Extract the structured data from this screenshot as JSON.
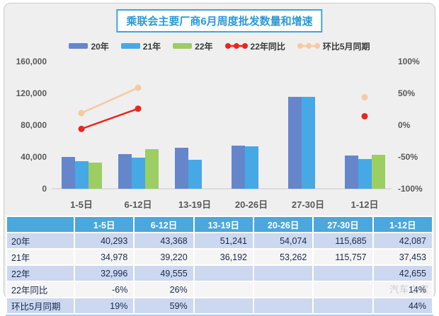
{
  "title": "乘联会主要厂商6月周度批发数量和增速",
  "watermark": "汽车之家",
  "colors": {
    "frame_bg": "#efefef",
    "title_blue": "#2b9ad7",
    "bar_2020": "#6586cb",
    "bar_2021": "#47a8e6",
    "bar_2022": "#9cce63",
    "line_yoy": "#e8271d",
    "line_mom": "#f5caa1",
    "table_header_bg": "#4ba7dc",
    "table_row_blue": "#cbd8ef",
    "table_row_white": "#f5f5f5",
    "axis_text": "#595959"
  },
  "legend": [
    {
      "label": "20年",
      "type": "bar",
      "color": "#6586cb"
    },
    {
      "label": "21年",
      "type": "bar",
      "color": "#47a8e6"
    },
    {
      "label": "22年",
      "type": "bar",
      "color": "#9cce63"
    },
    {
      "label": "22年同比",
      "type": "line",
      "color": "#e8271d"
    },
    {
      "label": "环比5月同期",
      "type": "line",
      "color": "#f5caa1"
    }
  ],
  "chart_data": {
    "type": "bar+line combo",
    "title": "乘联会主要厂商6月周度批发数量和增速",
    "categories": [
      "1-5日",
      "6-12日",
      "13-19日",
      "20-26日",
      "27-30日",
      "1-12日"
    ],
    "series": [
      {
        "name": "20年",
        "type": "bar",
        "axis": "left",
        "color": "#6586cb",
        "values": [
          40293,
          43368,
          51241,
          54074,
          115685,
          42087
        ]
      },
      {
        "name": "21年",
        "type": "bar",
        "axis": "left",
        "color": "#47a8e6",
        "values": [
          34978,
          39220,
          36192,
          53262,
          115757,
          37453
        ]
      },
      {
        "name": "22年",
        "type": "bar",
        "axis": "left",
        "color": "#9cce63",
        "values": [
          32996,
          49555,
          null,
          null,
          null,
          42655
        ]
      },
      {
        "name": "22年同比",
        "type": "line",
        "axis": "right",
        "color": "#e8271d",
        "values": [
          -6,
          26,
          null,
          null,
          null,
          14
        ]
      },
      {
        "name": "环比5月同期",
        "type": "line",
        "axis": "right",
        "color": "#f5caa1",
        "values": [
          19,
          59,
          null,
          null,
          null,
          44
        ]
      }
    ],
    "left_axis": {
      "min": 0,
      "max": 160000,
      "ticks": [
        "0",
        "40,000",
        "80,000",
        "120,000",
        "160,000"
      ]
    },
    "right_axis": {
      "min": -100,
      "max": 100,
      "ticks": [
        "-100%",
        "-50%",
        "0%",
        "50%",
        "100%"
      ]
    },
    "grid": false,
    "legend_position": "top"
  },
  "table": {
    "header": [
      "",
      "1-5日",
      "6-12日",
      "13-19日",
      "20-26日",
      "27-30日",
      "1-12日"
    ],
    "rows": [
      {
        "label": "20年",
        "values": [
          "40,293",
          "43,368",
          "51,241",
          "54,074",
          "115,685",
          "42,087"
        ]
      },
      {
        "label": "21年",
        "values": [
          "34,978",
          "39,220",
          "36,192",
          "53,262",
          "115,757",
          "37,453"
        ]
      },
      {
        "label": "22年",
        "values": [
          "32,996",
          "49,555",
          "",
          "",
          "",
          "42,655"
        ]
      },
      {
        "label": "22年同比",
        "values": [
          "-6%",
          "26%",
          "",
          "",
          "",
          "14%"
        ]
      },
      {
        "label": "环比5月同期",
        "values": [
          "19%",
          "59%",
          "",
          "",
          "",
          "44%"
        ]
      }
    ]
  }
}
